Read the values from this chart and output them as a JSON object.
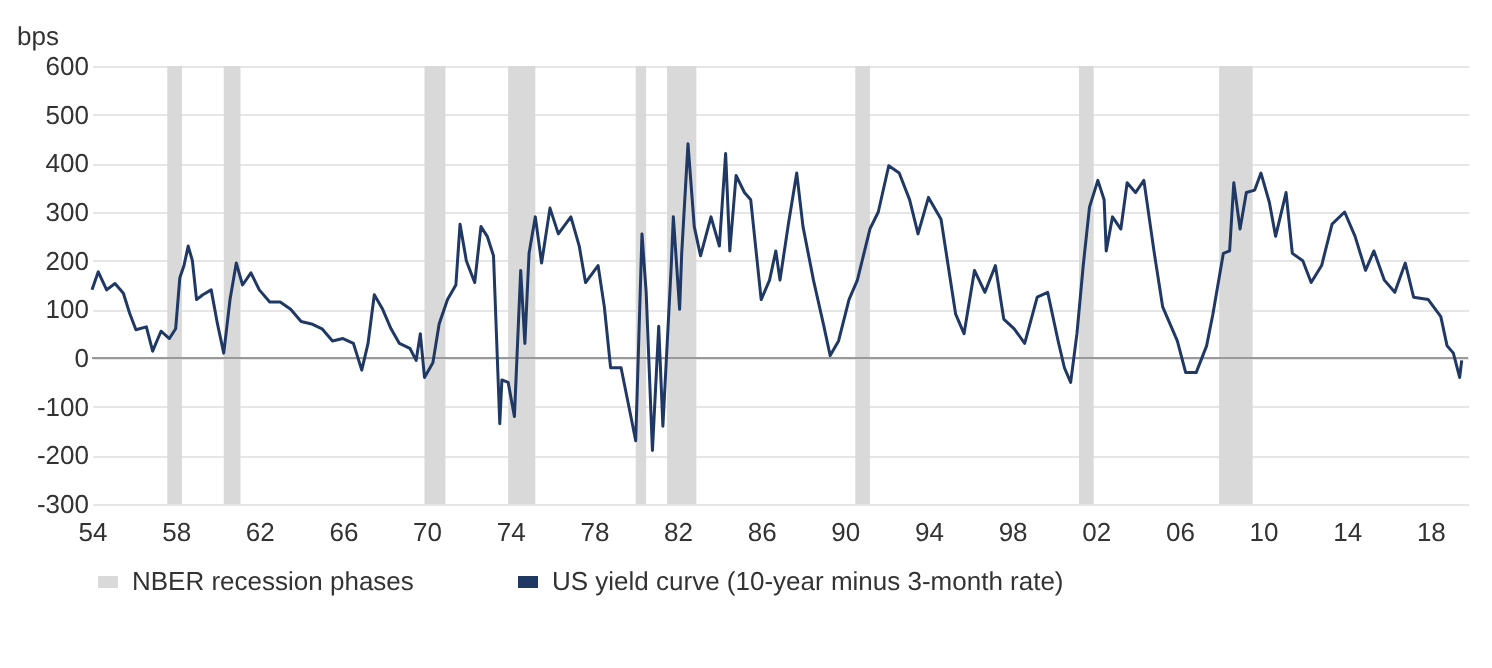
{
  "chart_data": {
    "type": "line",
    "ylabel": "bps",
    "xlim": [
      1954,
      2019.8
    ],
    "ylim": [
      -300,
      600
    ],
    "xticks": [
      {
        "value": 1954,
        "label": "54"
      },
      {
        "value": 1958,
        "label": "58"
      },
      {
        "value": 1962,
        "label": "62"
      },
      {
        "value": 1966,
        "label": "66"
      },
      {
        "value": 1970,
        "label": "70"
      },
      {
        "value": 1974,
        "label": "74"
      },
      {
        "value": 1978,
        "label": "78"
      },
      {
        "value": 1982,
        "label": "82"
      },
      {
        "value": 1986,
        "label": "86"
      },
      {
        "value": 1990,
        "label": "90"
      },
      {
        "value": 1994,
        "label": "94"
      },
      {
        "value": 1998,
        "label": "98"
      },
      {
        "value": 2002,
        "label": "02"
      },
      {
        "value": 2006,
        "label": "06"
      },
      {
        "value": 2010,
        "label": "10"
      },
      {
        "value": 2014,
        "label": "14"
      },
      {
        "value": 2018,
        "label": "18"
      }
    ],
    "yticks": [
      -300,
      -200,
      -100,
      0,
      100,
      200,
      300,
      400,
      500,
      600
    ],
    "grid": "y",
    "legend": "bottom",
    "bands": [
      {
        "axis": "x",
        "from": 1957.6,
        "to": 1958.3,
        "label": "NBER recession phases",
        "color": "#d9d9d9"
      },
      {
        "axis": "x",
        "from": 1960.3,
        "to": 1961.1,
        "color": "#d9d9d9"
      },
      {
        "axis": "x",
        "from": 1969.9,
        "to": 1970.9,
        "color": "#d9d9d9"
      },
      {
        "axis": "x",
        "from": 1973.9,
        "to": 1975.2,
        "color": "#d9d9d9"
      },
      {
        "axis": "x",
        "from": 1980.0,
        "to": 1980.5,
        "color": "#d9d9d9"
      },
      {
        "axis": "x",
        "from": 1981.5,
        "to": 1982.9,
        "color": "#d9d9d9"
      },
      {
        "axis": "x",
        "from": 1990.5,
        "to": 1991.2,
        "color": "#d9d9d9"
      },
      {
        "axis": "x",
        "from": 2001.2,
        "to": 2001.9,
        "color": "#d9d9d9"
      },
      {
        "axis": "x",
        "from": 2007.9,
        "to": 2009.5,
        "color": "#d9d9d9"
      }
    ],
    "series": [
      {
        "name": "US yield curve (10-year minus 3-month rate)",
        "color": "#1f3864",
        "x": [
          1954.0,
          1954.3,
          1954.7,
          1955.1,
          1955.5,
          1955.8,
          1956.1,
          1956.6,
          1956.9,
          1957.3,
          1957.7,
          1958.0,
          1958.2,
          1958.4,
          1958.6,
          1958.8,
          1959.0,
          1959.3,
          1959.7,
          1960.0,
          1960.3,
          1960.6,
          1960.9,
          1961.2,
          1961.6,
          1962.0,
          1962.5,
          1963.0,
          1963.5,
          1964.0,
          1964.5,
          1965.0,
          1965.5,
          1966.0,
          1966.5,
          1966.9,
          1967.2,
          1967.5,
          1967.9,
          1968.3,
          1968.7,
          1969.2,
          1969.5,
          1969.7,
          1969.9,
          1970.3,
          1970.6,
          1971.0,
          1971.4,
          1971.6,
          1971.9,
          1972.3,
          1972.6,
          1972.9,
          1973.2,
          1973.5,
          1973.6,
          1973.9,
          1974.2,
          1974.5,
          1974.7,
          1974.9,
          1975.2,
          1975.5,
          1975.9,
          1976.3,
          1976.9,
          1977.3,
          1977.6,
          1978.2,
          1978.5,
          1978.8,
          1979.3,
          1979.8,
          1980.0,
          1980.3,
          1980.5,
          1980.8,
          1981.1,
          1981.3,
          1981.7,
          1981.8,
          1982.1,
          1982.2,
          1982.5,
          1982.8,
          1983.1,
          1983.6,
          1984.0,
          1984.3,
          1984.5,
          1984.8,
          1985.2,
          1985.5,
          1986.0,
          1986.4,
          1986.7,
          1986.9,
          1987.3,
          1987.7,
          1988.0,
          1988.5,
          1989.0,
          1989.3,
          1989.7,
          1990.2,
          1990.6,
          1991.2,
          1991.6,
          1992.1,
          1992.6,
          1993.1,
          1993.5,
          1994.0,
          1994.6,
          1995.3,
          1995.7,
          1996.2,
          1996.7,
          1997.2,
          1997.6,
          1998.1,
          1998.6,
          1999.2,
          1999.7,
          2000.2,
          2000.5,
          2000.8,
          2001.1,
          2001.4,
          2001.7,
          2002.1,
          2002.4,
          2002.5,
          2002.8,
          2003.2,
          2003.5,
          2003.9,
          2004.3,
          2004.8,
          2005.2,
          2005.9,
          2006.3,
          2006.8,
          2007.3,
          2007.6,
          2008.1,
          2008.4,
          2008.6,
          2008.9,
          2009.2,
          2009.6,
          2009.9,
          2010.3,
          2010.6,
          2011.1,
          2011.4,
          2011.9,
          2012.3,
          2012.8,
          2013.3,
          2013.9,
          2014.4,
          2014.9,
          2015.3,
          2015.8,
          2016.3,
          2016.8,
          2017.2,
          2017.9,
          2018.5,
          2018.8,
          2019.1,
          2019.4,
          2019.5
        ],
        "values": [
          140,
          177,
          140,
          153,
          133,
          92,
          58,
          64,
          14,
          55,
          40,
          60,
          165,
          190,
          230,
          200,
          120,
          130,
          140,
          70,
          10,
          120,
          195,
          150,
          175,
          140,
          115,
          115,
          100,
          75,
          70,
          60,
          35,
          40,
          30,
          -25,
          30,
          130,
          100,
          60,
          30,
          20,
          -5,
          50,
          -40,
          -10,
          70,
          120,
          150,
          275,
          200,
          155,
          270,
          250,
          210,
          -135,
          -45,
          -50,
          -120,
          180,
          30,
          215,
          290,
          195,
          308,
          255,
          290,
          230,
          155,
          190,
          105,
          -20,
          -20,
          -127,
          -170,
          255,
          135,
          -190,
          65,
          -140,
          190,
          290,
          100,
          215,
          440,
          270,
          210,
          290,
          230,
          420,
          220,
          375,
          340,
          325,
          120,
          160,
          220,
          160,
          275,
          380,
          270,
          160,
          65,
          5,
          35,
          120,
          160,
          265,
          300,
          395,
          380,
          325,
          255,
          330,
          285,
          90,
          50,
          180,
          135,
          190,
          80,
          60,
          30,
          125,
          135,
          35,
          -20,
          -50,
          50,
          190,
          310,
          365,
          325,
          220,
          290,
          265,
          360,
          340,
          365,
          215,
          105,
          35,
          -30,
          -30,
          25,
          90,
          215,
          220,
          360,
          265,
          340,
          345,
          380,
          320,
          250,
          340,
          215,
          200,
          155,
          190,
          275,
          300,
          250,
          180,
          220,
          160,
          135,
          195,
          125,
          120,
          85,
          25,
          10,
          -40,
          -5
        ]
      }
    ]
  }
}
